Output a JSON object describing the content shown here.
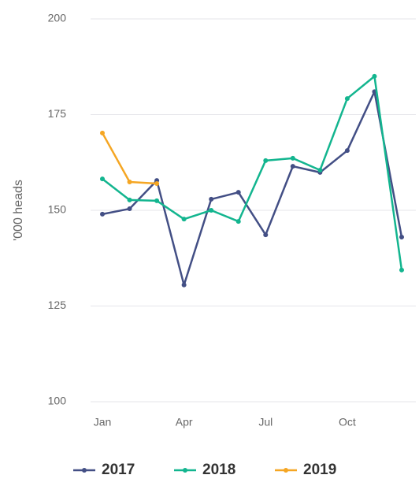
{
  "chart_data": {
    "type": "line",
    "y_label": "'000 heads",
    "categories": [
      "Jan",
      null,
      null,
      "Apr",
      null,
      null,
      "Jul",
      null,
      null,
      "Oct",
      null,
      null
    ],
    "series": [
      {
        "name": "2017",
        "color": "#434f85",
        "values": [
          149,
          150.4,
          157.8,
          130.5,
          152.9,
          154.7,
          143.6,
          161.5,
          159.9,
          165.6,
          181,
          143
        ]
      },
      {
        "name": "2018",
        "color": "#13b58f",
        "values": [
          158.2,
          152.7,
          152.5,
          147.7,
          150,
          147.1,
          163,
          163.6,
          160.5,
          179.2,
          185,
          134.4
        ]
      },
      {
        "name": "2019",
        "color": "#f5a623",
        "values": [
          170.2,
          157.4,
          157,
          null,
          null,
          null,
          null,
          null,
          null,
          null,
          null,
          null
        ]
      }
    ],
    "ylim": [
      100,
      200
    ],
    "yticks": [
      100,
      125,
      150,
      175,
      200
    ],
    "grid": true,
    "legend": "bottom"
  }
}
